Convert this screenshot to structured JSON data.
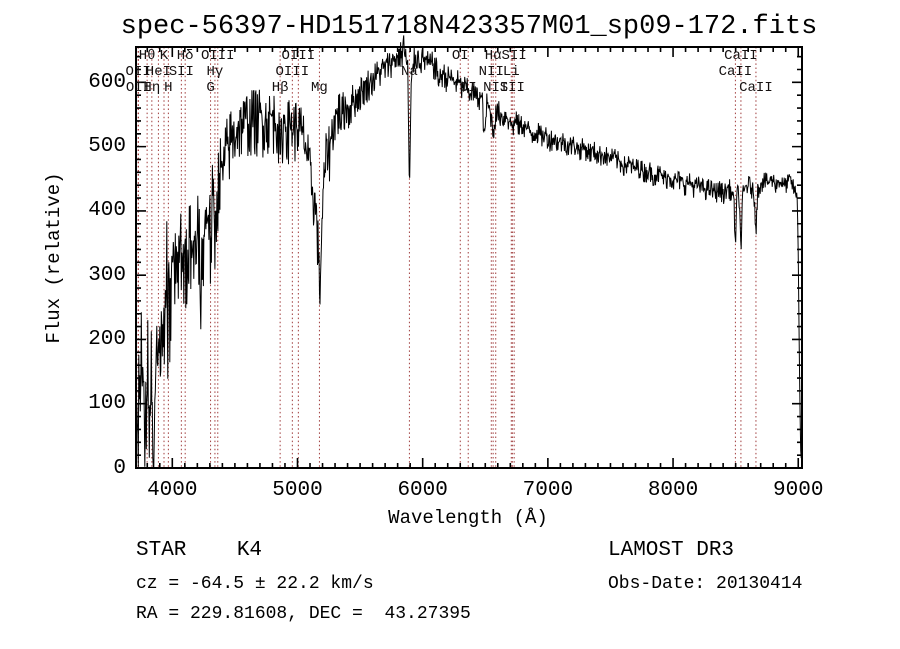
{
  "chart_data": {
    "type": "line",
    "title": "spec-56397-HD151718N423357M01_sp09-172.fits",
    "xlabel": "Wavelength (Å)",
    "ylabel": "Flux (relative)",
    "xlim": [
      3710,
      9030
    ],
    "ylim": [
      0,
      655
    ],
    "x_major_ticks": [
      4000,
      5000,
      6000,
      7000,
      8000,
      9000
    ],
    "x_minor_step": 100,
    "y_major_ticks": [
      0,
      100,
      200,
      300,
      400,
      500,
      600
    ],
    "y_minor_step": 20,
    "grid": false,
    "legend": null,
    "axis_color": "#000000",
    "spectrum_color": "#000000",
    "line_marker_color": "#a03c3c",
    "line_label_color": "#151010",
    "annotations": {
      "class_label": "STAR    K4",
      "survey_label": "LAMOST DR3",
      "cz_label": "cz = -64.5 ± 22.2 km/s",
      "radec_label": "RA = 229.81608, DEC =  43.27395",
      "obsdate_label": "Obs-Date: 20130414"
    },
    "spectral_lines": [
      {
        "label": "OII",
        "wavelength": 3727.1,
        "row": 2
      },
      {
        "label": "OII",
        "wavelength": 3729.9,
        "row": 3
      },
      {
        "label": "Hθ",
        "wavelength": 3798.8,
        "row": 1
      },
      {
        "label": "Hη",
        "wavelength": 3836.5,
        "row": 3
      },
      {
        "label": "HeI",
        "wavelength": 3889.0,
        "row": 2
      },
      {
        "label": "K",
        "wavelength": 3933.7,
        "row": 1
      },
      {
        "label": "H",
        "wavelength": 3968.5,
        "row": 3
      },
      {
        "label": "SII",
        "wavelength": 4072.3,
        "row": 2
      },
      {
        "label": "Hδ",
        "wavelength": 4102.9,
        "row": 1
      },
      {
        "label": "G",
        "wavelength": 4305.6,
        "row": 3
      },
      {
        "label": "Hγ",
        "wavelength": 4340.5,
        "row": 2
      },
      {
        "label": "OIII",
        "wavelength": 4363.2,
        "row": 1
      },
      {
        "label": "Hβ",
        "wavelength": 4861.3,
        "row": 3
      },
      {
        "label": "OIII",
        "wavelength": 4958.9,
        "row": 2
      },
      {
        "label": "OIII",
        "wavelength": 5006.8,
        "row": 1
      },
      {
        "label": "Mg",
        "wavelength": 5175.3,
        "row": 3
      },
      {
        "label": "Na",
        "wavelength": 5894.0,
        "row": 2
      },
      {
        "label": "OI",
        "wavelength": 6300.3,
        "row": 1
      },
      {
        "label": "OI",
        "wavelength": 6363.8,
        "row": 3
      },
      {
        "label": "NII",
        "wavelength": 6548.1,
        "row": 2
      },
      {
        "label": "Hα",
        "wavelength": 6562.8,
        "row": 1
      },
      {
        "label": "NII",
        "wavelength": 6583.5,
        "row": 3
      },
      {
        "label": "Li",
        "wavelength": 6707.8,
        "row": 2
      },
      {
        "label": "SII",
        "wavelength": 6716.4,
        "row": 3
      },
      {
        "label": "SII",
        "wavelength": 6730.8,
        "row": 1
      },
      {
        "label": "CaII",
        "wavelength": 8498.0,
        "row": 2
      },
      {
        "label": "CaII",
        "wavelength": 8542.1,
        "row": 1
      },
      {
        "label": "CaII",
        "wavelength": 8662.1,
        "row": 3
      }
    ],
    "envelope": [
      [
        3712,
        90
      ],
      [
        3722,
        60
      ],
      [
        3732,
        140
      ],
      [
        3742,
        100
      ],
      [
        3755,
        150
      ],
      [
        3768,
        120
      ],
      [
        3780,
        95
      ],
      [
        3792,
        110
      ],
      [
        3805,
        130
      ],
      [
        3818,
        105
      ],
      [
        3830,
        115
      ],
      [
        3843,
        100
      ],
      [
        3856,
        125
      ],
      [
        3870,
        165
      ],
      [
        3884,
        195
      ],
      [
        3898,
        210
      ],
      [
        3912,
        235
      ],
      [
        3926,
        195
      ],
      [
        3934,
        160
      ],
      [
        3944,
        255
      ],
      [
        3956,
        290
      ],
      [
        3968,
        205
      ],
      [
        3980,
        290
      ],
      [
        3995,
        330
      ],
      [
        4010,
        328
      ],
      [
        4030,
        342
      ],
      [
        4050,
        332
      ],
      [
        4070,
        348
      ],
      [
        4090,
        318
      ],
      [
        4102,
        288
      ],
      [
        4120,
        338
      ],
      [
        4140,
        348
      ],
      [
        4160,
        342
      ],
      [
        4180,
        362
      ],
      [
        4200,
        368
      ],
      [
        4215,
        352
      ],
      [
        4226,
        248
      ],
      [
        4240,
        338
      ],
      [
        4260,
        378
      ],
      [
        4280,
        398
      ],
      [
        4295,
        408
      ],
      [
        4306,
        330
      ],
      [
        4320,
        415
      ],
      [
        4332,
        395
      ],
      [
        4341,
        358
      ],
      [
        4355,
        425
      ],
      [
        4368,
        445
      ],
      [
        4382,
        468
      ],
      [
        4398,
        452
      ],
      [
        4415,
        478
      ],
      [
        4432,
        492
      ],
      [
        4450,
        502
      ],
      [
        4468,
        512
      ],
      [
        4486,
        518
      ],
      [
        4505,
        524
      ],
      [
        4525,
        532
      ],
      [
        4550,
        540
      ],
      [
        4575,
        532
      ],
      [
        4600,
        545
      ],
      [
        4625,
        538
      ],
      [
        4650,
        548
      ],
      [
        4675,
        541
      ],
      [
        4700,
        549
      ],
      [
        4725,
        541
      ],
      [
        4750,
        549
      ],
      [
        4775,
        541
      ],
      [
        4800,
        548
      ],
      [
        4820,
        540
      ],
      [
        4840,
        546
      ],
      [
        4861,
        482
      ],
      [
        4880,
        530
      ],
      [
        4900,
        542
      ],
      [
        4925,
        528
      ],
      [
        4950,
        538
      ],
      [
        4975,
        528
      ],
      [
        5000,
        536
      ],
      [
        5025,
        524
      ],
      [
        5050,
        512
      ],
      [
        5070,
        496
      ],
      [
        5090,
        470
      ],
      [
        5110,
        442
      ],
      [
        5130,
        424
      ],
      [
        5150,
        400
      ],
      [
        5165,
        345
      ],
      [
        5177,
        268
      ],
      [
        5188,
        330
      ],
      [
        5200,
        400
      ],
      [
        5215,
        452
      ],
      [
        5230,
        486
      ],
      [
        5245,
        510
      ],
      [
        5258,
        490
      ],
      [
        5272,
        522
      ],
      [
        5288,
        540
      ],
      [
        5310,
        548
      ],
      [
        5332,
        558
      ],
      [
        5355,
        549
      ],
      [
        5380,
        566
      ],
      [
        5410,
        558
      ],
      [
        5440,
        572
      ],
      [
        5470,
        578
      ],
      [
        5500,
        585
      ],
      [
        5530,
        592
      ],
      [
        5560,
        598
      ],
      [
        5590,
        604
      ],
      [
        5620,
        610
      ],
      [
        5650,
        616
      ],
      [
        5680,
        621
      ],
      [
        5710,
        626
      ],
      [
        5740,
        631
      ],
      [
        5770,
        636
      ],
      [
        5800,
        641
      ],
      [
        5822,
        646
      ],
      [
        5836,
        642
      ],
      [
        5846,
        672
      ],
      [
        5856,
        640
      ],
      [
        5866,
        636
      ],
      [
        5880,
        628
      ],
      [
        5894,
        425
      ],
      [
        5908,
        592
      ],
      [
        5922,
        630
      ],
      [
        5938,
        640
      ],
      [
        5962,
        642
      ],
      [
        5990,
        634
      ],
      [
        6020,
        636
      ],
      [
        6050,
        628
      ],
      [
        6080,
        630
      ],
      [
        6110,
        620
      ],
      [
        6135,
        602
      ],
      [
        6160,
        616
      ],
      [
        6190,
        607
      ],
      [
        6220,
        609
      ],
      [
        6250,
        600
      ],
      [
        6280,
        602
      ],
      [
        6310,
        592
      ],
      [
        6340,
        594
      ],
      [
        6370,
        585
      ],
      [
        6400,
        587
      ],
      [
        6430,
        577
      ],
      [
        6460,
        579
      ],
      [
        6478,
        570
      ],
      [
        6493,
        507
      ],
      [
        6510,
        568
      ],
      [
        6530,
        560
      ],
      [
        6548,
        548
      ],
      [
        6563,
        524
      ],
      [
        6580,
        548
      ],
      [
        6605,
        556
      ],
      [
        6635,
        546
      ],
      [
        6665,
        550
      ],
      [
        6695,
        540
      ],
      [
        6716,
        532
      ],
      [
        6745,
        540
      ],
      [
        6775,
        533
      ],
      [
        6805,
        535
      ],
      [
        6840,
        527
      ],
      [
        6875,
        520
      ],
      [
        6910,
        525
      ],
      [
        6945,
        517
      ],
      [
        6980,
        519
      ],
      [
        7015,
        512
      ],
      [
        7050,
        514
      ],
      [
        7090,
        507
      ],
      [
        7130,
        509
      ],
      [
        7170,
        502
      ],
      [
        7210,
        504
      ],
      [
        7250,
        497
      ],
      [
        7290,
        499
      ],
      [
        7330,
        492
      ],
      [
        7370,
        494
      ],
      [
        7410,
        487
      ],
      [
        7450,
        489
      ],
      [
        7490,
        482
      ],
      [
        7530,
        484
      ],
      [
        7570,
        477
      ],
      [
        7610,
        471
      ],
      [
        7650,
        474
      ],
      [
        7690,
        466
      ],
      [
        7730,
        469
      ],
      [
        7770,
        461
      ],
      [
        7810,
        464
      ],
      [
        7850,
        456
      ],
      [
        7890,
        459
      ],
      [
        7930,
        451
      ],
      [
        7970,
        454
      ],
      [
        8010,
        447
      ],
      [
        8050,
        449
      ],
      [
        8090,
        442
      ],
      [
        8130,
        445
      ],
      [
        8170,
        438
      ],
      [
        8210,
        440
      ],
      [
        8250,
        434
      ],
      [
        8290,
        436
      ],
      [
        8330,
        430
      ],
      [
        8370,
        433
      ],
      [
        8410,
        428
      ],
      [
        8445,
        438
      ],
      [
        8470,
        428
      ],
      [
        8485,
        420
      ],
      [
        8498,
        352
      ],
      [
        8512,
        430
      ],
      [
        8528,
        422
      ],
      [
        8542,
        342
      ],
      [
        8556,
        424
      ],
      [
        8580,
        438
      ],
      [
        8610,
        442
      ],
      [
        8635,
        432
      ],
      [
        8650,
        420
      ],
      [
        8662,
        372
      ],
      [
        8676,
        432
      ],
      [
        8700,
        444
      ],
      [
        8730,
        448
      ],
      [
        8760,
        444
      ],
      [
        8790,
        450
      ],
      [
        8820,
        443
      ],
      [
        8850,
        447
      ],
      [
        8880,
        440
      ],
      [
        8910,
        443
      ],
      [
        8935,
        450
      ],
      [
        8960,
        438
      ],
      [
        8980,
        428
      ],
      [
        8993,
        415
      ],
      [
        9000,
        340
      ],
      [
        9007,
        210
      ],
      [
        9014,
        95
      ],
      [
        9020,
        28
      ],
      [
        9026,
        8
      ]
    ],
    "noise_profile": [
      [
        3712,
        72
      ],
      [
        3988,
        72
      ],
      [
        4005,
        45
      ],
      [
        4290,
        42
      ],
      [
        4520,
        33
      ],
      [
        5060,
        30
      ],
      [
        5240,
        27
      ],
      [
        5460,
        17
      ],
      [
        5835,
        13
      ],
      [
        5920,
        13
      ],
      [
        6380,
        12
      ],
      [
        6800,
        11
      ],
      [
        7500,
        10
      ],
      [
        8400,
        10
      ],
      [
        8700,
        9
      ],
      [
        8988,
        8
      ],
      [
        8996,
        3
      ],
      [
        9030,
        2
      ]
    ],
    "noise_seed": 73,
    "sample_step": 4
  }
}
